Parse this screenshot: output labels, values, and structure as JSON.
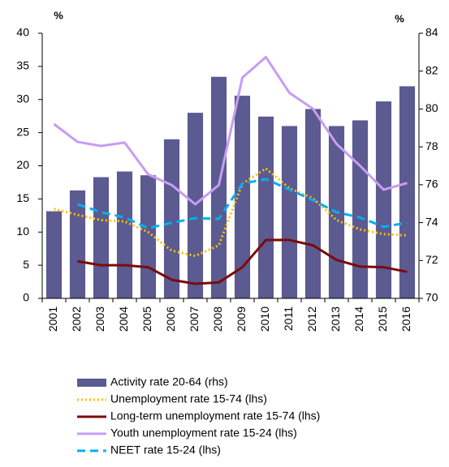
{
  "chart_data": {
    "type": "combo",
    "y_label": "%",
    "y2_label": "%",
    "categories": [
      "2001",
      "2002",
      "2003",
      "2004",
      "2005",
      "2006",
      "2007",
      "2008",
      "2009",
      "2010",
      "2011",
      "2012",
      "2013",
      "2014",
      "2015",
      "2016"
    ],
    "ylim": [
      0,
      40
    ],
    "yticks": [
      0,
      5,
      10,
      15,
      20,
      25,
      30,
      35,
      40
    ],
    "y2lim": [
      70,
      84
    ],
    "y2ticks": [
      70,
      72,
      74,
      76,
      78,
      80,
      82,
      84
    ],
    "grid": false,
    "series": [
      {
        "name": "Activity rate 20-64 (rhs)",
        "type": "bar",
        "axis": "y2",
        "color": "#5b5a91",
        "values": [
          74.6,
          75.7,
          76.4,
          76.7,
          76.5,
          78.4,
          79.8,
          81.7,
          80.7,
          79.6,
          79.1,
          80.0,
          79.1,
          79.4,
          80.4,
          81.2
        ]
      },
      {
        "name": "Unemployment rate 15-74 (lhs)",
        "type": "line",
        "dash": "dotted",
        "color": "#ffc000",
        "values": [
          13.5,
          12.6,
          11.8,
          11.6,
          10.0,
          7.2,
          6.4,
          8.0,
          17.3,
          19.6,
          16.6,
          15.1,
          11.8,
          10.4,
          9.7,
          9.5
        ]
      },
      {
        "name": "Long-term unemployment rate 15-74 (lhs)",
        "type": "line",
        "dash": "solid",
        "color": "#7b0a0a",
        "values": [
          null,
          5.6,
          5.0,
          5.0,
          4.7,
          2.8,
          2.2,
          2.4,
          4.7,
          8.8,
          8.8,
          8.0,
          5.8,
          4.8,
          4.7,
          4.0
        ]
      },
      {
        "name": "Youth unemployment rate 15-24 (lhs)",
        "type": "line",
        "dash": "solid",
        "color": "#c89cf2",
        "values": [
          26.3,
          23.6,
          23.0,
          23.5,
          18.7,
          17.1,
          14.2,
          17.1,
          33.3,
          36.4,
          31.0,
          28.6,
          23.3,
          20.0,
          16.4,
          17.4
        ]
      },
      {
        "name": "NEET rate 15-24 (lhs)",
        "type": "line",
        "dash": "dashed",
        "color": "#00b0f0",
        "values": [
          null,
          14.2,
          13.0,
          12.2,
          10.6,
          11.4,
          12.1,
          12.0,
          17.3,
          18.0,
          16.4,
          14.8,
          13.0,
          12.2,
          10.8,
          11.4
        ]
      }
    ]
  }
}
